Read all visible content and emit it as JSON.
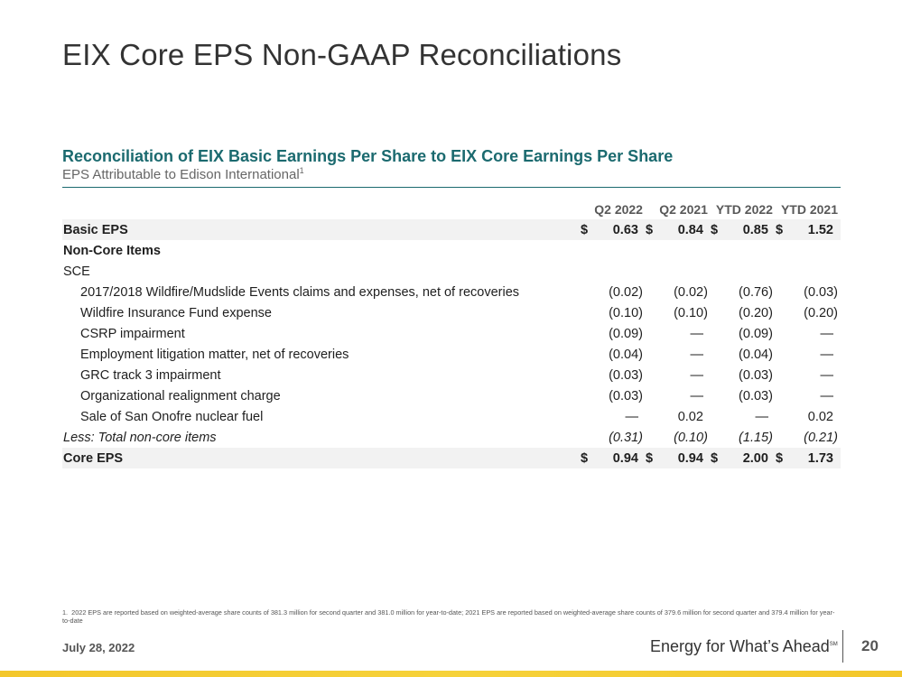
{
  "slide": {
    "title": "EIX Core EPS Non-GAAP Reconciliations",
    "date": "July 28, 2022",
    "tagline": "Energy for What’s Ahead",
    "tagline_mark": "SM",
    "page_number": "20",
    "accent_color": "#1b6a6f",
    "bar_color": "#f3c72b"
  },
  "section": {
    "title": "Reconciliation of EIX Basic Earnings Per Share to EIX Core Earnings Per Share",
    "subtitle": "EPS Attributable to Edison International",
    "subtitle_note": "1"
  },
  "table": {
    "headers": [
      "Q2 2022",
      "Q2 2021",
      "YTD 2022",
      "YTD 2021"
    ],
    "basic": {
      "label": "Basic EPS",
      "cur": "$",
      "values": [
        "0.63",
        "0.84",
        "0.85",
        "1.52"
      ]
    },
    "noncore_label": "Non-Core Items",
    "sce_label": "SCE",
    "items": [
      {
        "label": "2017/2018 Wildfire/Mudslide Events claims and expenses, net of recoveries",
        "values": [
          "(0.02)",
          "(0.02)",
          "(0.76)",
          "(0.03)"
        ]
      },
      {
        "label": "Wildfire Insurance Fund expense",
        "values": [
          "(0.10)",
          "(0.10)",
          "(0.20)",
          "(0.20)"
        ]
      },
      {
        "label": "CSRP impairment",
        "values": [
          "(0.09)",
          "—",
          "(0.09)",
          "—"
        ]
      },
      {
        "label": "Employment litigation matter, net of recoveries",
        "values": [
          "(0.04)",
          "—",
          "(0.04)",
          "—"
        ]
      },
      {
        "label": "GRC track 3 impairment",
        "values": [
          "(0.03)",
          "—",
          "(0.03)",
          "—"
        ]
      },
      {
        "label": "Organizational realignment charge",
        "values": [
          "(0.03)",
          "—",
          "(0.03)",
          "—"
        ]
      },
      {
        "label": "Sale of San Onofre nuclear fuel",
        "values": [
          "—",
          "0.02",
          "—",
          "0.02"
        ]
      }
    ],
    "total": {
      "label": "Less: Total non-core items",
      "values": [
        "(0.31)",
        "(0.10)",
        "(1.15)",
        "(0.21)"
      ]
    },
    "core": {
      "label": "Core EPS",
      "cur": "$",
      "values": [
        "0.94",
        "0.94",
        "2.00",
        "1.73"
      ]
    }
  },
  "footnote": "1.  2022 EPS are reported based on weighted-average share counts of 381.3 million for second quarter and 381.0 million for year-to-date; 2021 EPS are reported based on weighted-average share counts of 379.6 million for second quarter and 379.4 million for year-to-date"
}
